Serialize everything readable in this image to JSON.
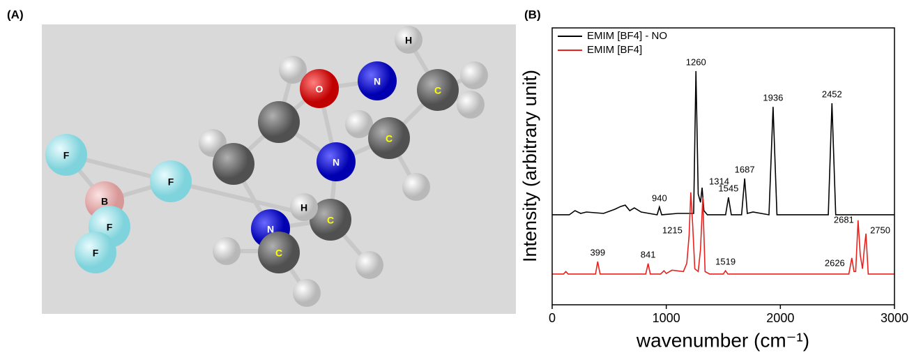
{
  "panel_a": {
    "label": "(A)",
    "atoms": [
      "F",
      "F",
      "B",
      "F",
      "F",
      "O",
      "N",
      "N",
      "C",
      "C",
      "H",
      "N",
      "C",
      "H",
      "C"
    ]
  },
  "chart_data": {
    "type": "line",
    "panel_label": "(B)",
    "xlabel": "wavenumber (cm⁻¹)",
    "ylabel": "Intensity (arbitrary unit)",
    "xlim": [
      0,
      3000
    ],
    "xticks": [
      0,
      1000,
      2000,
      3000
    ],
    "ylim": [
      0,
      100
    ],
    "legend": "upper left",
    "series": [
      {
        "name": "EMIM [BF4] - NO",
        "color": "#000000",
        "x": [
          0,
          150,
          200,
          250,
          300,
          450,
          550,
          600,
          640,
          680,
          720,
          780,
          850,
          920,
          940,
          960,
          1100,
          1200,
          1240,
          1260,
          1280,
          1300,
          1314,
          1330,
          1360,
          1520,
          1545,
          1570,
          1660,
          1687,
          1710,
          1760,
          1900,
          1936,
          1970,
          2420,
          2452,
          2485,
          3000
        ],
        "values": [
          32.5,
          32.5,
          34,
          33,
          33.5,
          33,
          34.5,
          35.5,
          36,
          34,
          35,
          33.5,
          33,
          32.5,
          35.3,
          32.5,
          33,
          33,
          33,
          84.4,
          40,
          37,
          42.3,
          34,
          32.5,
          32.5,
          38.8,
          32.5,
          32.5,
          45.6,
          33,
          33.5,
          32.5,
          71.5,
          32.5,
          32.5,
          72.8,
          32.5,
          32.5
        ],
        "annotations": [
          {
            "label": "940",
            "x": 940,
            "y": 35.3
          },
          {
            "label": "1260",
            "x": 1260,
            "y": 84.4
          },
          {
            "label": "1314",
            "x": 1314,
            "y": 42.3
          },
          {
            "label": "1545",
            "x": 1545,
            "y": 38.8
          },
          {
            "label": "1687",
            "x": 1687,
            "y": 45.6
          },
          {
            "label": "1936",
            "x": 1936,
            "y": 71.5
          },
          {
            "label": "2452",
            "x": 2452,
            "y": 72.8
          }
        ]
      },
      {
        "name": "EMIM [BF4]",
        "color": "#e8211d",
        "x": [
          0,
          100,
          120,
          140,
          380,
          399,
          420,
          820,
          841,
          860,
          950,
          980,
          1000,
          1050,
          1150,
          1180,
          1200,
          1215,
          1230,
          1250,
          1280,
          1300,
          1320,
          1340,
          1380,
          1500,
          1519,
          1540,
          2600,
          2626,
          2645,
          2660,
          2681,
          2700,
          2720,
          2735,
          2750,
          2770,
          3000
        ],
        "values": [
          11.1,
          11.1,
          12,
          11.1,
          11.1,
          15.6,
          11.1,
          11.1,
          14.9,
          11.1,
          11.1,
          12.3,
          11.3,
          12.5,
          12,
          15,
          25,
          40.6,
          30,
          13,
          12,
          20,
          38.8,
          12,
          11.1,
          11.1,
          12.3,
          11.1,
          11.1,
          16.9,
          12,
          12,
          30.5,
          18,
          13,
          20,
          25.7,
          11.1,
          11.1
        ],
        "annotations": [
          {
            "label": "399",
            "x": 399,
            "y": 15.6
          },
          {
            "label": "841",
            "x": 841,
            "y": 14.9
          },
          {
            "label": "1215",
            "x": 1215,
            "y": 40.6
          },
          {
            "label": "1519",
            "x": 1519,
            "y": 12.3
          },
          {
            "label": "2626",
            "x": 2626,
            "y": 16.9
          },
          {
            "label": "2681",
            "x": 2681,
            "y": 30.5
          },
          {
            "label": "2750",
            "x": 2750,
            "y": 25.7
          }
        ]
      }
    ]
  }
}
